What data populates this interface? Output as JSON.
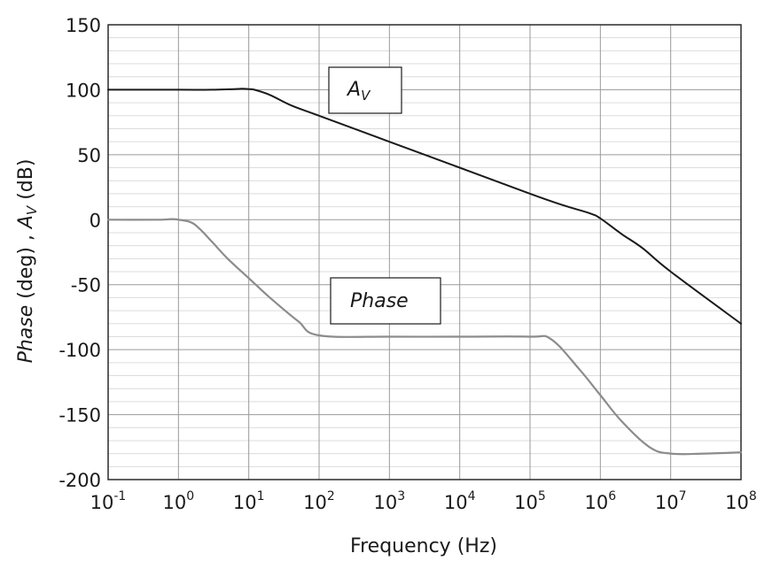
{
  "chart_data": {
    "type": "line",
    "xscale": "log",
    "xlabel": "Frequency (Hz)",
    "ylabel": {
      "part1": "Phase",
      "part2": " (deg) , ",
      "part3": "A",
      "part3_sub": "V",
      "part4": " (dB)"
    },
    "xlim": [
      0.1,
      100000000
    ],
    "ylim": [
      -200,
      150
    ],
    "x_ticks": [
      {
        "base": "10",
        "exp": "-1"
      },
      {
        "base": "10",
        "exp": "0"
      },
      {
        "base": "10",
        "exp": "1"
      },
      {
        "base": "10",
        "exp": "2"
      },
      {
        "base": "10",
        "exp": "3"
      },
      {
        "base": "10",
        "exp": "4"
      },
      {
        "base": "10",
        "exp": "5"
      },
      {
        "base": "10",
        "exp": "6"
      },
      {
        "base": "10",
        "exp": "7"
      },
      {
        "base": "10",
        "exp": "8"
      }
    ],
    "y_ticks": [
      "150",
      "100",
      "50",
      "0",
      "-50",
      "-100",
      "-150",
      "-200"
    ],
    "y_tick_values": [
      150,
      100,
      50,
      0,
      -50,
      -100,
      -150,
      -200
    ],
    "grid": true,
    "series": [
      {
        "name": "AV",
        "color": "#1a1a1a",
        "x": [
          0.1,
          1,
          3,
          6,
          8,
          10,
          12,
          20,
          40,
          100,
          1000,
          10000,
          100000,
          300000,
          700000,
          1000000,
          2000000,
          4000000,
          10000000,
          100000000
        ],
        "y": [
          100,
          100,
          100,
          100.5,
          100.8,
          100.5,
          100,
          96,
          88,
          80,
          60,
          40,
          20,
          11,
          5,
          1,
          -11,
          -22,
          -40,
          -80
        ]
      },
      {
        "name": "Phase",
        "color": "#8c8c8c",
        "x": [
          0.1,
          0.5,
          0.8,
          1,
          1.5,
          2,
          3,
          5,
          10,
          20,
          50,
          100,
          1000,
          10000,
          100000,
          200000,
          500000,
          1000000,
          2000000,
          5000000,
          10000000,
          30000000,
          100000000
        ],
        "y": [
          0,
          0,
          0.5,
          0,
          -2,
          -7,
          -17,
          -30,
          -45,
          -60,
          -78,
          -89,
          -90,
          -90,
          -90,
          -92,
          -115,
          -135,
          -155,
          -175,
          -180,
          -180,
          -179
        ]
      }
    ],
    "annotations": [
      {
        "main": "A",
        "sub": "V"
      },
      {
        "main": "Phase",
        "sub": ""
      }
    ]
  }
}
